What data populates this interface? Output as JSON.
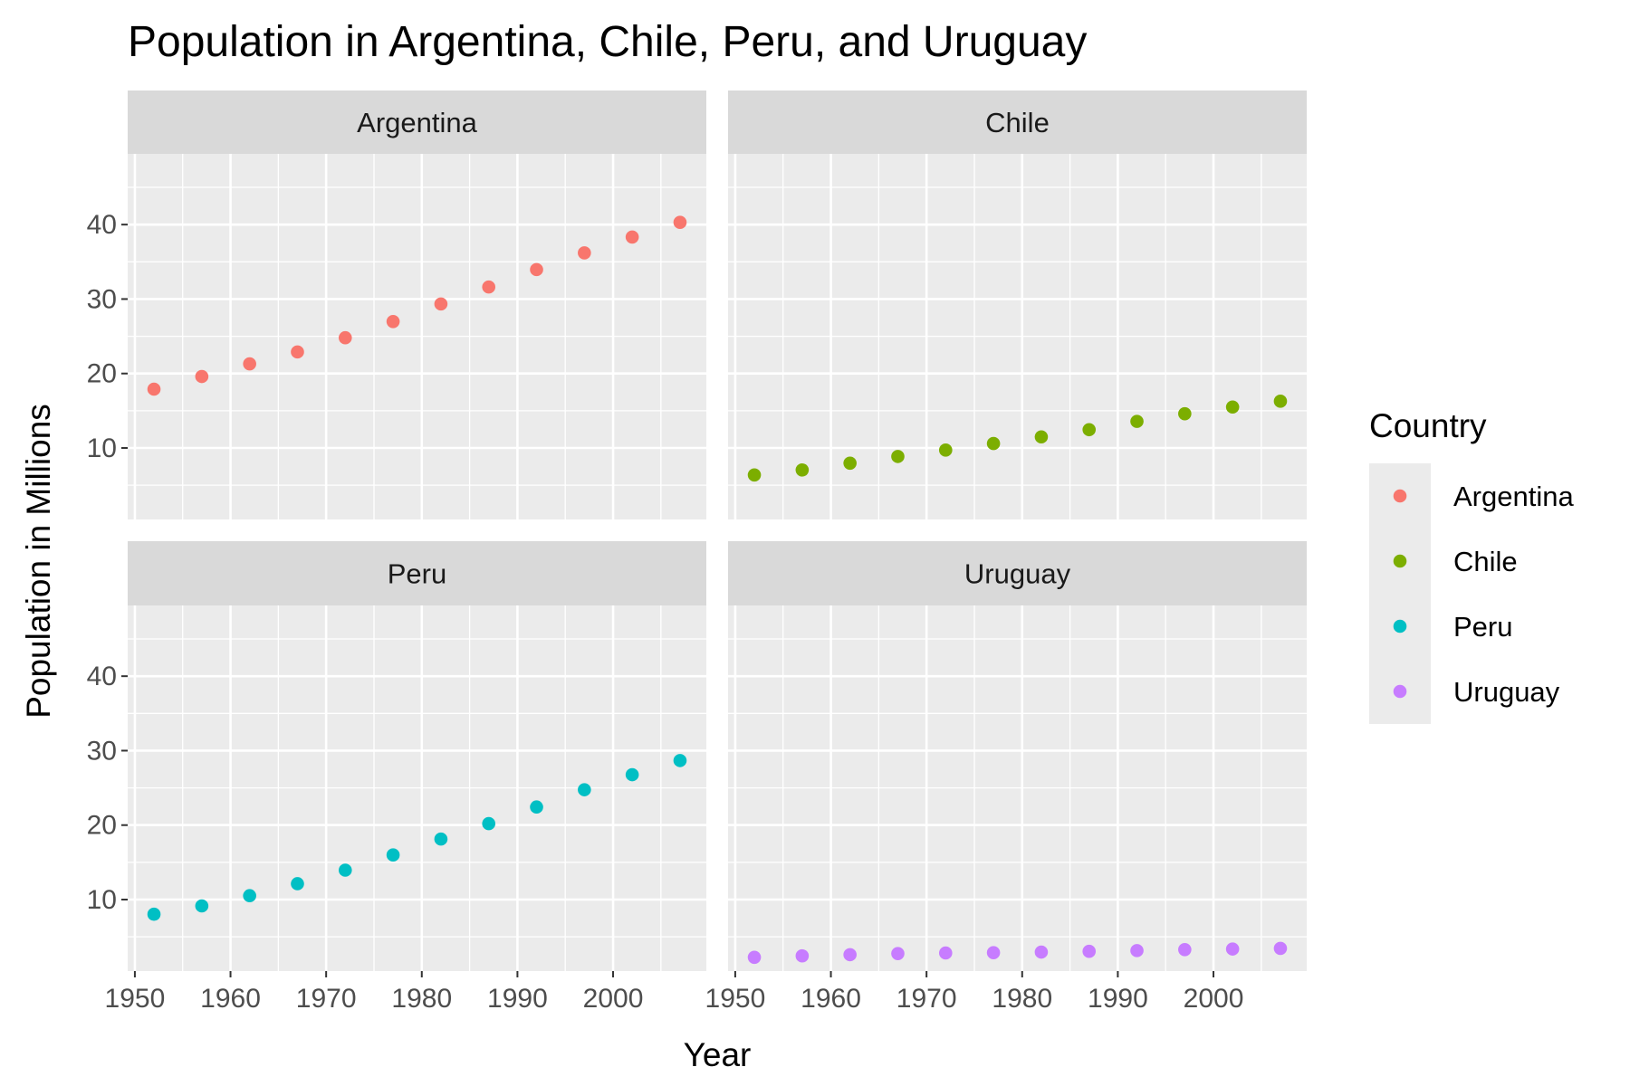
{
  "chart_data": {
    "type": "scatter",
    "title": "Population in Argentina, Chile, Peru, and Uruguay",
    "xlabel": "Year",
    "ylabel": "Population in Millions",
    "x_ticks": [
      1950,
      1960,
      1970,
      1980,
      1990,
      2000
    ],
    "y_ticks": [
      10,
      20,
      30,
      40
    ],
    "xlim": [
      1949.25,
      2009.75
    ],
    "ylim": [
      0.4,
      49.5
    ],
    "grid": true,
    "facets": [
      "Argentina",
      "Chile",
      "Peru",
      "Uruguay"
    ],
    "legend": {
      "title": "Country",
      "placement": "right"
    },
    "x": [
      1952,
      1957,
      1962,
      1967,
      1972,
      1977,
      1982,
      1987,
      1992,
      1997,
      2002,
      2007
    ],
    "series": [
      {
        "name": "Argentina",
        "color": "#F8766D",
        "values": [
          17.9,
          19.6,
          21.3,
          22.9,
          24.8,
          26.98,
          29.34,
          31.62,
          33.96,
          36.2,
          38.33,
          40.3
        ]
      },
      {
        "name": "Chile",
        "color": "#7CAE00",
        "values": [
          6.38,
          7.05,
          7.96,
          8.86,
          9.72,
          10.6,
          11.49,
          12.46,
          13.57,
          14.6,
          15.5,
          16.28
        ]
      },
      {
        "name": "Peru",
        "color": "#00BFC4",
        "values": [
          8.03,
          9.15,
          10.52,
          12.13,
          13.95,
          15.99,
          18.13,
          20.2,
          22.43,
          24.75,
          26.77,
          28.67
        ]
      },
      {
        "name": "Uruguay",
        "color": "#C77CFF",
        "values": [
          2.25,
          2.44,
          2.6,
          2.75,
          2.83,
          2.87,
          2.95,
          3.05,
          3.15,
          3.28,
          3.36,
          3.45
        ]
      }
    ]
  }
}
